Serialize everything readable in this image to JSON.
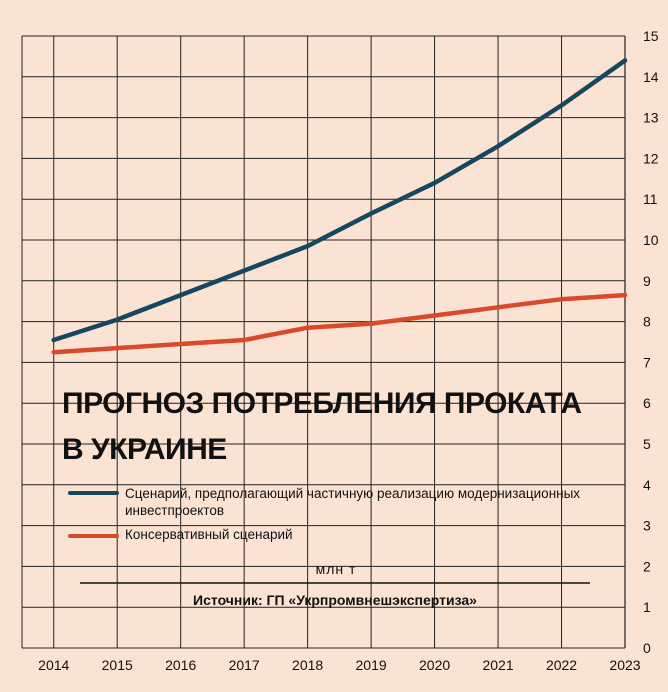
{
  "chart_data": {
    "type": "line",
    "title_lines": [
      "ПРОГНОЗ ПОТРЕБЛЕНИЯ ПРОКАТА",
      "В УКРАИНЕ"
    ],
    "x": [
      "2014",
      "2015",
      "2016",
      "2017",
      "2018",
      "2019",
      "2020",
      "2021",
      "2022",
      "2023"
    ],
    "ylim": [
      0,
      15
    ],
    "yticks": [
      0,
      1,
      2,
      3,
      4,
      5,
      6,
      7,
      8,
      9,
      10,
      11,
      12,
      13,
      14,
      15
    ],
    "y_axis_side": "right",
    "unit_label": "млн т",
    "grid": true,
    "legend_position": "left, inside plot",
    "series": [
      {
        "name": "Сценарий, предполагающий частичную реализацию модернизационных инвестпроектов",
        "name_lines": [
          "Сценарий, предполагающий частичную реализацию модернизационных",
          "инвестпроектов"
        ],
        "color": "#17475f",
        "values": [
          7.55,
          8.05,
          8.65,
          9.25,
          9.85,
          10.65,
          11.4,
          12.3,
          13.3,
          14.4
        ]
      },
      {
        "name": "Консервативный сценарий",
        "name_lines": [
          "Консервативный сценарий"
        ],
        "color": "#d94a2b",
        "values": [
          7.25,
          7.35,
          7.45,
          7.55,
          7.85,
          7.95,
          8.15,
          8.35,
          8.55,
          8.65
        ]
      }
    ],
    "source": "Источник: ГП «Укрпромвнешэкспертиза»"
  },
  "colors": {
    "background": "#fbe3d4",
    "grid": "#222222"
  }
}
